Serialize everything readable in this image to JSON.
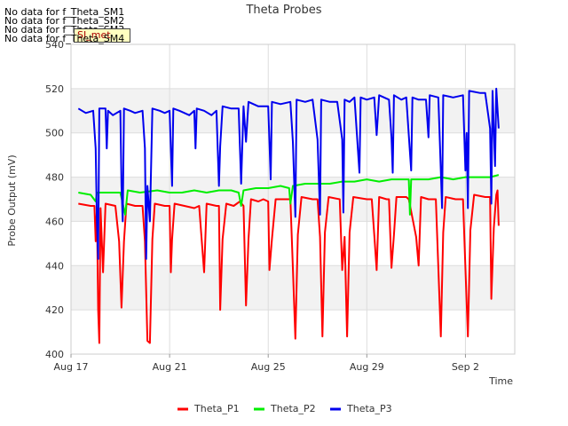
{
  "notices": [
    "No data for f_Theta_SM1",
    "No data for f_Theta_SM2",
    "No data for f_Theta_SM3",
    "No data for f_Theta_SM4"
  ],
  "badge_label": "SI_met",
  "chart_data": {
    "type": "line",
    "title": "Theta Probes",
    "xlabel": "Time",
    "ylabel": "Probe Output (mV)",
    "ylim": [
      400,
      540
    ],
    "yticks": [
      400,
      420,
      440,
      460,
      480,
      500,
      520,
      540
    ],
    "xtick_labels": [
      "Aug 17",
      "Aug 21",
      "Aug 25",
      "Aug 29",
      "Sep 2"
    ],
    "xtick_days": [
      0,
      4,
      8,
      12,
      16
    ],
    "xlim_days": [
      0,
      18
    ],
    "grid": true,
    "legend_position": "bottom-center",
    "series": [
      {
        "name": "Theta_P1",
        "color": "#ff0000",
        "points": [
          [
            0.3,
            468
          ],
          [
            0.8,
            467
          ],
          [
            0.95,
            467
          ],
          [
            1.0,
            451
          ],
          [
            1.05,
            466
          ],
          [
            1.1,
            420
          ],
          [
            1.15,
            405
          ],
          [
            1.2,
            466
          ],
          [
            1.3,
            437
          ],
          [
            1.4,
            468
          ],
          [
            1.8,
            467
          ],
          [
            1.95,
            451
          ],
          [
            2.05,
            421
          ],
          [
            2.15,
            451
          ],
          [
            2.25,
            468
          ],
          [
            2.6,
            467
          ],
          [
            2.9,
            467
          ],
          [
            3.0,
            451
          ],
          [
            3.1,
            406
          ],
          [
            3.2,
            405
          ],
          [
            3.3,
            452
          ],
          [
            3.4,
            468
          ],
          [
            3.8,
            467
          ],
          [
            4.0,
            467
          ],
          [
            4.05,
            437
          ],
          [
            4.1,
            452
          ],
          [
            4.2,
            468
          ],
          [
            5.0,
            466
          ],
          [
            5.2,
            467
          ],
          [
            5.3,
            452
          ],
          [
            5.4,
            437
          ],
          [
            5.5,
            468
          ],
          [
            5.9,
            467
          ],
          [
            6.0,
            467
          ],
          [
            6.05,
            420
          ],
          [
            6.15,
            452
          ],
          [
            6.3,
            468
          ],
          [
            6.6,
            467
          ],
          [
            6.85,
            469
          ],
          [
            7.0,
            467
          ],
          [
            7.1,
            422
          ],
          [
            7.2,
            452
          ],
          [
            7.3,
            470
          ],
          [
            7.6,
            469
          ],
          [
            7.8,
            470
          ],
          [
            8.0,
            469
          ],
          [
            8.05,
            438
          ],
          [
            8.15,
            452
          ],
          [
            8.3,
            470
          ],
          [
            8.5,
            470
          ],
          [
            8.9,
            470
          ],
          [
            9.0,
            439
          ],
          [
            9.1,
            407
          ],
          [
            9.2,
            454
          ],
          [
            9.35,
            471
          ],
          [
            9.8,
            470
          ],
          [
            10.0,
            470
          ],
          [
            10.1,
            453
          ],
          [
            10.2,
            408
          ],
          [
            10.3,
            455
          ],
          [
            10.45,
            471
          ],
          [
            10.9,
            470
          ],
          [
            11.0,
            438
          ],
          [
            11.1,
            453
          ],
          [
            11.2,
            408
          ],
          [
            11.3,
            455
          ],
          [
            11.45,
            471
          ],
          [
            12.0,
            470
          ],
          [
            12.2,
            470
          ],
          [
            12.3,
            454
          ],
          [
            12.4,
            438
          ],
          [
            12.5,
            471
          ],
          [
            12.8,
            470
          ],
          [
            12.9,
            470
          ],
          [
            13.0,
            439
          ],
          [
            13.1,
            454
          ],
          [
            13.2,
            471
          ],
          [
            13.6,
            471
          ],
          [
            13.7,
            470
          ],
          [
            14.0,
            453
          ],
          [
            14.1,
            440
          ],
          [
            14.2,
            471
          ],
          [
            14.5,
            470
          ],
          [
            14.8,
            470
          ],
          [
            15.0,
            408
          ],
          [
            15.1,
            455
          ],
          [
            15.2,
            471
          ],
          [
            15.6,
            470
          ],
          [
            15.9,
            470
          ],
          [
            16.0,
            439
          ],
          [
            16.1,
            408
          ],
          [
            16.2,
            456
          ],
          [
            16.35,
            472
          ],
          [
            16.8,
            471
          ],
          [
            17.0,
            471
          ],
          [
            17.05,
            425
          ],
          [
            17.1,
            441
          ],
          [
            17.15,
            457
          ],
          [
            17.25,
            472
          ],
          [
            17.3,
            474
          ],
          [
            17.35,
            458
          ]
        ]
      },
      {
        "name": "Theta_P2",
        "color": "#00ee00",
        "points": [
          [
            0.3,
            473
          ],
          [
            0.8,
            472
          ],
          [
            1.0,
            469
          ],
          [
            1.05,
            473
          ],
          [
            1.4,
            473
          ],
          [
            2.0,
            473
          ],
          [
            2.2,
            463
          ],
          [
            2.3,
            474
          ],
          [
            2.8,
            473
          ],
          [
            3.5,
            474
          ],
          [
            4.0,
            473
          ],
          [
            4.5,
            473
          ],
          [
            5.0,
            474
          ],
          [
            5.5,
            473
          ],
          [
            6.0,
            474
          ],
          [
            6.5,
            474
          ],
          [
            6.8,
            473
          ],
          [
            6.9,
            467
          ],
          [
            7.0,
            474
          ],
          [
            7.5,
            475
          ],
          [
            8.0,
            475
          ],
          [
            8.5,
            476
          ],
          [
            8.85,
            475
          ],
          [
            8.9,
            468
          ],
          [
            9.0,
            476
          ],
          [
            9.5,
            477
          ],
          [
            10.0,
            477
          ],
          [
            10.5,
            477
          ],
          [
            11.0,
            478
          ],
          [
            11.5,
            478
          ],
          [
            12.0,
            479
          ],
          [
            12.5,
            478
          ],
          [
            13.0,
            479
          ],
          [
            13.5,
            479
          ],
          [
            13.7,
            479
          ],
          [
            13.75,
            463
          ],
          [
            13.8,
            479
          ],
          [
            14.5,
            479
          ],
          [
            15.0,
            480
          ],
          [
            15.5,
            479
          ],
          [
            16.0,
            480
          ],
          [
            16.5,
            480
          ],
          [
            17.0,
            480
          ],
          [
            17.35,
            481
          ]
        ]
      },
      {
        "name": "Theta_P3",
        "color": "#0000ee",
        "points": [
          [
            0.3,
            511
          ],
          [
            0.6,
            509
          ],
          [
            0.9,
            510
          ],
          [
            1.0,
            493
          ],
          [
            1.05,
            460
          ],
          [
            1.1,
            443
          ],
          [
            1.15,
            511
          ],
          [
            1.4,
            511
          ],
          [
            1.45,
            493
          ],
          [
            1.5,
            510
          ],
          [
            1.7,
            508
          ],
          [
            2.0,
            510
          ],
          [
            2.05,
            476
          ],
          [
            2.1,
            460
          ],
          [
            2.15,
            511
          ],
          [
            2.4,
            510
          ],
          [
            2.6,
            509
          ],
          [
            2.9,
            510
          ],
          [
            3.0,
            493
          ],
          [
            3.05,
            443
          ],
          [
            3.1,
            476
          ],
          [
            3.2,
            460
          ],
          [
            3.3,
            511
          ],
          [
            3.6,
            510
          ],
          [
            3.8,
            509
          ],
          [
            4.0,
            510
          ],
          [
            4.05,
            493
          ],
          [
            4.1,
            476
          ],
          [
            4.15,
            511
          ],
          [
            4.4,
            510
          ],
          [
            4.8,
            508
          ],
          [
            5.0,
            510
          ],
          [
            5.05,
            493
          ],
          [
            5.1,
            511
          ],
          [
            5.4,
            510
          ],
          [
            5.7,
            508
          ],
          [
            5.9,
            510
          ],
          [
            6.0,
            476
          ],
          [
            6.05,
            494
          ],
          [
            6.15,
            512
          ],
          [
            6.5,
            511
          ],
          [
            6.8,
            511
          ],
          [
            6.9,
            477
          ],
          [
            7.0,
            512
          ],
          [
            7.1,
            496
          ],
          [
            7.2,
            514
          ],
          [
            7.6,
            512
          ],
          [
            8.0,
            512
          ],
          [
            8.05,
            496
          ],
          [
            8.1,
            479
          ],
          [
            8.15,
            514
          ],
          [
            8.5,
            513
          ],
          [
            8.9,
            514
          ],
          [
            9.0,
            496
          ],
          [
            9.05,
            479
          ],
          [
            9.1,
            462
          ],
          [
            9.15,
            515
          ],
          [
            9.5,
            514
          ],
          [
            9.8,
            515
          ],
          [
            10.0,
            497
          ],
          [
            10.05,
            480
          ],
          [
            10.1,
            463
          ],
          [
            10.15,
            515
          ],
          [
            10.5,
            514
          ],
          [
            10.8,
            514
          ],
          [
            11.0,
            497
          ],
          [
            11.05,
            464
          ],
          [
            11.1,
            515
          ],
          [
            11.3,
            514
          ],
          [
            11.5,
            516
          ],
          [
            11.6,
            499
          ],
          [
            11.7,
            482
          ],
          [
            11.75,
            516
          ],
          [
            12.0,
            515
          ],
          [
            12.3,
            516
          ],
          [
            12.4,
            499
          ],
          [
            12.5,
            517
          ],
          [
            12.9,
            515
          ],
          [
            13.0,
            498
          ],
          [
            13.05,
            482
          ],
          [
            13.1,
            517
          ],
          [
            13.4,
            515
          ],
          [
            13.6,
            516
          ],
          [
            13.7,
            499
          ],
          [
            13.8,
            483
          ],
          [
            13.85,
            516
          ],
          [
            14.1,
            515
          ],
          [
            14.4,
            515
          ],
          [
            14.5,
            498
          ],
          [
            14.55,
            517
          ],
          [
            14.9,
            516
          ],
          [
            15.0,
            483
          ],
          [
            15.05,
            466
          ],
          [
            15.1,
            517
          ],
          [
            15.5,
            516
          ],
          [
            15.9,
            517
          ],
          [
            16.0,
            483
          ],
          [
            16.05,
            500
          ],
          [
            16.1,
            466
          ],
          [
            16.15,
            519
          ],
          [
            16.6,
            518
          ],
          [
            16.8,
            518
          ],
          [
            17.0,
            502
          ],
          [
            17.05,
            468
          ],
          [
            17.1,
            519
          ],
          [
            17.2,
            485
          ],
          [
            17.25,
            520
          ],
          [
            17.35,
            502
          ]
        ]
      }
    ]
  }
}
